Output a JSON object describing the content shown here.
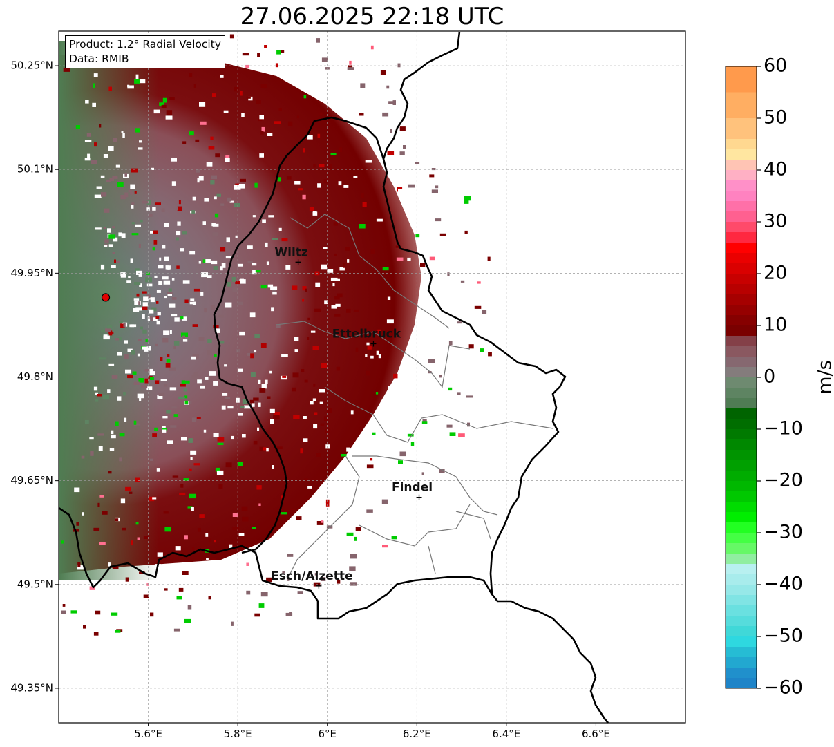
{
  "title": "27.06.2025 22:18 UTC",
  "info": {
    "product": "Product: 1.2° Radial Velocity",
    "data": "Data: RMIB"
  },
  "map": {
    "lon_range": [
      5.4,
      6.8
    ],
    "lat_range": [
      49.3,
      50.3
    ],
    "lon_ticks": [
      "5.6°E",
      "5.8°E",
      "6°E",
      "6.2°E",
      "6.4°E",
      "6.6°E"
    ],
    "lon_tick_values": [
      5.6,
      5.8,
      6.0,
      6.2,
      6.4,
      6.6
    ],
    "lat_ticks": [
      "50.25°N",
      "50.1°N",
      "49.95°N",
      "49.8°N",
      "49.65°N",
      "49.5°N",
      "49.35°N"
    ],
    "lat_tick_values": [
      50.25,
      50.1,
      49.95,
      49.8,
      49.65,
      49.5,
      49.35
    ],
    "grid": true,
    "radar_site": {
      "lon": 5.505,
      "lat": 49.915
    },
    "places": [
      {
        "name": "Wiltz",
        "lon": 5.935,
        "lat": 49.966
      },
      {
        "name": "Ettelbruck",
        "lon": 6.103,
        "lat": 49.848
      },
      {
        "name": "Findel",
        "lon": 6.205,
        "lat": 49.626
      },
      {
        "name": "Esch/Alzette",
        "lon": 5.981,
        "lat": 49.498
      }
    ]
  },
  "colorbar": {
    "label": "m/s",
    "ticks": [
      "60",
      "50",
      "40",
      "30",
      "20",
      "10",
      "0",
      "−10",
      "−20",
      "−30",
      "−40",
      "−50",
      "−60"
    ],
    "range": [
      -60,
      60
    ]
  },
  "colors": {
    "outbound_strong": "#7a0000",
    "outbound_weak": "#86646c",
    "inbound_weak": "#5e8462",
    "inbound_strong": "#00cc00"
  }
}
